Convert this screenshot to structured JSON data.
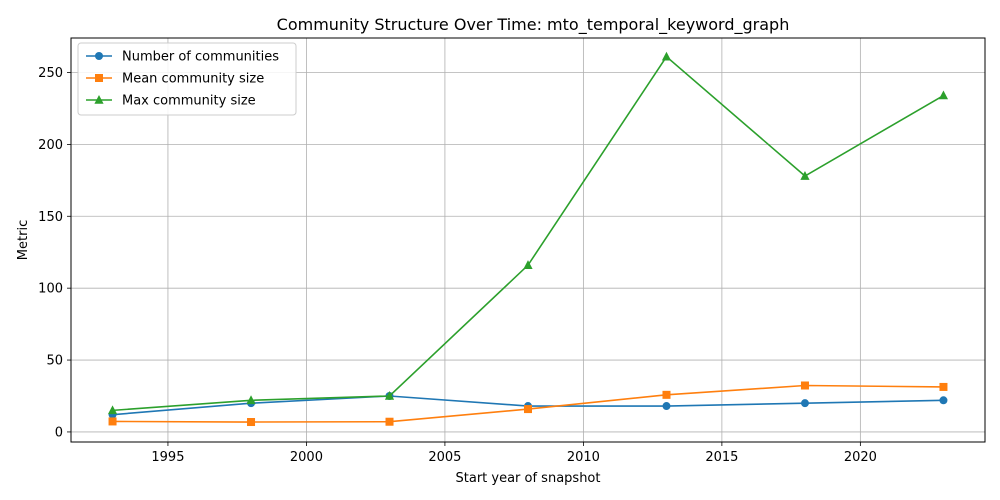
{
  "chart_data": {
    "type": "line",
    "title": "Community Structure Over Time: mto_temporal_keyword_graph",
    "xlabel": "Start year of snapshot",
    "ylabel": "Metric",
    "x": [
      1993,
      1998,
      2003,
      2008,
      2013,
      2018,
      2023
    ],
    "xlim": [
      1991.5,
      2024.5
    ],
    "ylim": [
      -7,
      274
    ],
    "xticks": [
      1995,
      2000,
      2005,
      2010,
      2015,
      2020
    ],
    "yticks": [
      0,
      50,
      100,
      150,
      200,
      250
    ],
    "grid": true,
    "legend_position": "top-left",
    "series": [
      {
        "name": "Number of communities",
        "color": "#1f77b4",
        "marker": "circle",
        "values": [
          12,
          20,
          25,
          18,
          18,
          20,
          22
        ]
      },
      {
        "name": "Mean community size",
        "color": "#ff7f0e",
        "marker": "square",
        "values": [
          7.3,
          6.9,
          7.1,
          15.9,
          25.8,
          32.3,
          31.3
        ]
      },
      {
        "name": "Max community size",
        "color": "#2ca02c",
        "marker": "triangle",
        "values": [
          15,
          22,
          25,
          116,
          261,
          178,
          234
        ]
      }
    ]
  }
}
